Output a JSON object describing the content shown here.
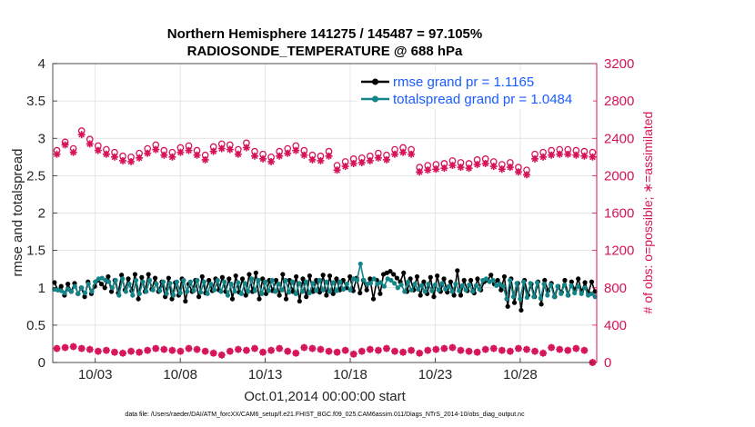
{
  "chart_data": {
    "type": "line",
    "title": [
      "Northern Hemisphere 141275 / 145487 = 97.105%",
      "RADIOSONDE_TEMPERATURE @ 688 hPa"
    ],
    "xlabel": "Oct.01,2014 00:00:00 start",
    "ylabel_left": "rmse and totalspread",
    "ylabel_right": "# of obs: o=possible; ∗=assimilated",
    "footnote": "data file: /Users/raeder/DAI/ATM_forcXX/CAM6_setup/f.e21.FHIST_BGC.f09_025.CAM6assim.011/Diags_NTrS_2014-10/obs_diag_output.nc",
    "xlim": [
      0.5,
      32.5
    ],
    "ylim_left": [
      0,
      4
    ],
    "ylim_right": [
      0,
      3200
    ],
    "x_ticks": [
      3,
      8,
      13,
      18,
      23,
      28
    ],
    "x_tick_labels": [
      "10/03",
      "10/08",
      "10/13",
      "10/18",
      "10/23",
      "10/28"
    ],
    "y_ticks_left": [
      0,
      0.5,
      1,
      1.5,
      2,
      2.5,
      3,
      3.5,
      4
    ],
    "y_tick_labels_left": [
      "0",
      "0.5",
      "1",
      "1.5",
      "2",
      "2.5",
      "3",
      "3.5",
      "4"
    ],
    "y_ticks_right": [
      0,
      400,
      800,
      1200,
      1600,
      2000,
      2400,
      2800,
      3200
    ],
    "y_tick_labels_right": [
      "0",
      "400",
      "800",
      "1200",
      "1600",
      "2000",
      "2400",
      "2800",
      "3200"
    ],
    "grid": true,
    "legend_position": "top-right",
    "colors": {
      "rmse": "#000000",
      "spread": "#138488",
      "obs": "#d6135a",
      "legend_text": "#1a5cff"
    },
    "series": [
      {
        "name": "rmse grand pr = 1.1165",
        "axis": "left",
        "values": [
          1.07,
          0.97,
          1.02,
          0.9,
          1.05,
          0.95,
          1.06,
          0.92,
          1.0,
          0.88,
          1.08,
          0.92,
          1.02,
          1.1,
          1.05,
          1.0,
          1.15,
          0.95,
          1.1,
          0.93,
          1.17,
          0.97,
          1.12,
          0.96,
          1.18,
          0.85,
          1.14,
          0.95,
          1.18,
          0.98,
          1.13,
          0.95,
          1.08,
          0.88,
          1.13,
          0.85,
          1.07,
          0.9,
          1.12,
          0.82,
          1.05,
          0.95,
          1.1,
          0.88,
          1.15,
          0.93,
          1.1,
          0.96,
          1.12,
          0.97,
          1.14,
          0.95,
          1.12,
          0.85,
          1.16,
          0.94,
          1.12,
          0.9,
          1.18,
          0.95,
          1.2,
          0.85,
          1.12,
          0.92,
          1.1,
          0.96,
          1.1,
          0.9,
          1.18,
          0.85,
          1.1,
          0.95,
          1.15,
          0.82,
          1.12,
          0.88,
          1.16,
          0.95,
          1.1,
          0.94,
          1.17,
          0.9,
          1.16,
          0.92,
          1.12,
          0.97,
          1.1,
          1.0,
          1.15,
          0.96,
          1.13,
          0.93,
          1.1,
          0.97,
          1.12,
          0.85,
          1.1,
          0.92,
          1.18,
          1.2,
          1.22,
          1.18,
          1.13,
          1.08,
          1.2,
          0.95,
          1.12,
          0.97,
          1.15,
          0.9,
          1.08,
          0.92,
          1.14,
          0.88,
          1.16,
          0.95,
          1.12,
          0.94,
          1.08,
          0.9,
          1.23,
          0.9,
          1.1,
          0.96,
          1.1,
          0.93,
          1.12,
          0.97,
          1.08,
          1.1,
          1.17,
          1.05,
          1.1,
          0.97,
          1.15,
          0.75,
          1.12,
          0.8,
          1.06,
          0.7,
          1.1,
          0.9,
          1.05,
          0.88,
          1.08,
          0.78,
          1.1,
          0.96,
          1.06,
          0.88,
          1.02,
          0.94,
          1.1,
          0.9,
          1.08,
          0.97,
          1.12,
          0.95,
          1.07,
          0.93,
          1.08,
          0.95
        ]
      },
      {
        "name": "totalspread grand pr = 1.0484",
        "axis": "left",
        "values": [
          0.98,
          0.97,
          0.96,
          0.93,
          0.98,
          0.95,
          1.02,
          0.92,
          1.0,
          0.93,
          1.05,
          0.95,
          1.08,
          1.12,
          1.13,
          1.1,
          1.08,
          1.0,
          1.1,
          0.9,
          1.12,
          0.95,
          1.05,
          0.9,
          1.1,
          0.92,
          1.08,
          0.95,
          1.1,
          0.97,
          1.05,
          0.96,
          1.08,
          0.92,
          1.06,
          0.9,
          1.08,
          0.93,
          1.1,
          0.95,
          1.08,
          0.96,
          1.1,
          0.94,
          1.08,
          0.92,
          1.05,
          0.97,
          1.1,
          0.95,
          1.08,
          0.9,
          1.05,
          0.95,
          1.07,
          0.92,
          1.06,
          0.95,
          1.12,
          0.96,
          1.1,
          0.92,
          1.08,
          0.96,
          1.1,
          0.95,
          1.05,
          0.97,
          1.1,
          0.94,
          1.08,
          0.92,
          1.06,
          0.95,
          1.08,
          0.93,
          1.06,
          0.96,
          1.1,
          0.97,
          1.08,
          0.95,
          1.07,
          0.96,
          1.08,
          0.98,
          1.05,
          0.97,
          1.12,
          1.1,
          1.32,
          1.1,
          1.05,
          1.06,
          1.12,
          1.05,
          1.07,
          1.02,
          1.12,
          1.1,
          1.06,
          1.0,
          1.04,
          0.95,
          1.08,
          0.97,
          1.05,
          0.98,
          1.03,
          0.95,
          1.05,
          0.96,
          1.04,
          0.97,
          1.06,
          0.98,
          1.02,
          0.95,
          1.05,
          0.96,
          1.03,
          0.97,
          1.04,
          0.95,
          1.03,
          0.98,
          1.1,
          1.12,
          1.08,
          1.1,
          1.03,
          1.05,
          1.02,
          0.85,
          1.1,
          0.88,
          1.06,
          0.85,
          1.08,
          0.87,
          1.06,
          0.88,
          1.07,
          0.86,
          1.05,
          0.9,
          1.04,
          0.88,
          1.02,
          0.92,
          1.04,
          0.9,
          1.03,
          0.93,
          1.02,
          0.92,
          1.0,
          0.9,
          0.92,
          0.88
        ]
      },
      {
        "name": "possible",
        "axis": "right",
        "marker": "o",
        "values": [
          2270,
          2360,
          2290,
          2480,
          2390,
          2320,
          2280,
          2250,
          2210,
          2200,
          2240,
          2290,
          2330,
          2270,
          2250,
          2300,
          2320,
          2270,
          2220,
          2310,
          2340,
          2330,
          2280,
          2350,
          2260,
          2230,
          2200,
          2260,
          2290,
          2320,
          2270,
          2220,
          2210,
          2260,
          2110,
          2150,
          2180,
          2190,
          2210,
          2240,
          2220,
          2280,
          2300,
          2280,
          2090,
          2110,
          2120,
          2130,
          2160,
          2140,
          2130,
          2170,
          2180,
          2150,
          2120,
          2140,
          2090,
          2060,
          2230,
          2250,
          2270,
          2280,
          2280,
          2270,
          2260,
          2250
        ]
      },
      {
        "name": "assimilated",
        "axis": "right",
        "marker": "*",
        "values": [
          2230,
          2330,
          2250,
          2440,
          2340,
          2270,
          2230,
          2200,
          2160,
          2150,
          2190,
          2240,
          2280,
          2220,
          2200,
          2250,
          2270,
          2220,
          2170,
          2260,
          2290,
          2280,
          2230,
          2300,
          2210,
          2180,
          2150,
          2210,
          2240,
          2270,
          2220,
          2170,
          2160,
          2210,
          2060,
          2100,
          2130,
          2140,
          2160,
          2190,
          2170,
          2230,
          2250,
          2230,
          2040,
          2060,
          2070,
          2080,
          2110,
          2090,
          2080,
          2120,
          2130,
          2100,
          2070,
          2090,
          2040,
          2010,
          2180,
          2200,
          2220,
          2230,
          2230,
          2220,
          2210,
          2200
        ]
      },
      {
        "name": "obs_low",
        "axis": "right",
        "values": [
          150,
          160,
          170,
          150,
          140,
          120,
          130,
          110,
          100,
          120,
          110,
          130,
          150,
          140,
          130,
          120,
          150,
          140,
          120,
          100,
          80,
          120,
          140,
          130,
          150,
          110,
          130,
          150,
          120,
          100,
          160,
          150,
          140,
          120,
          110,
          130,
          90,
          120,
          140,
          130,
          150,
          120,
          110,
          130,
          100,
          130,
          140,
          150,
          160,
          130,
          120,
          110,
          140,
          150,
          130,
          120,
          150,
          140,
          120,
          100,
          160,
          140,
          130,
          150,
          130,
          0
        ]
      }
    ]
  }
}
